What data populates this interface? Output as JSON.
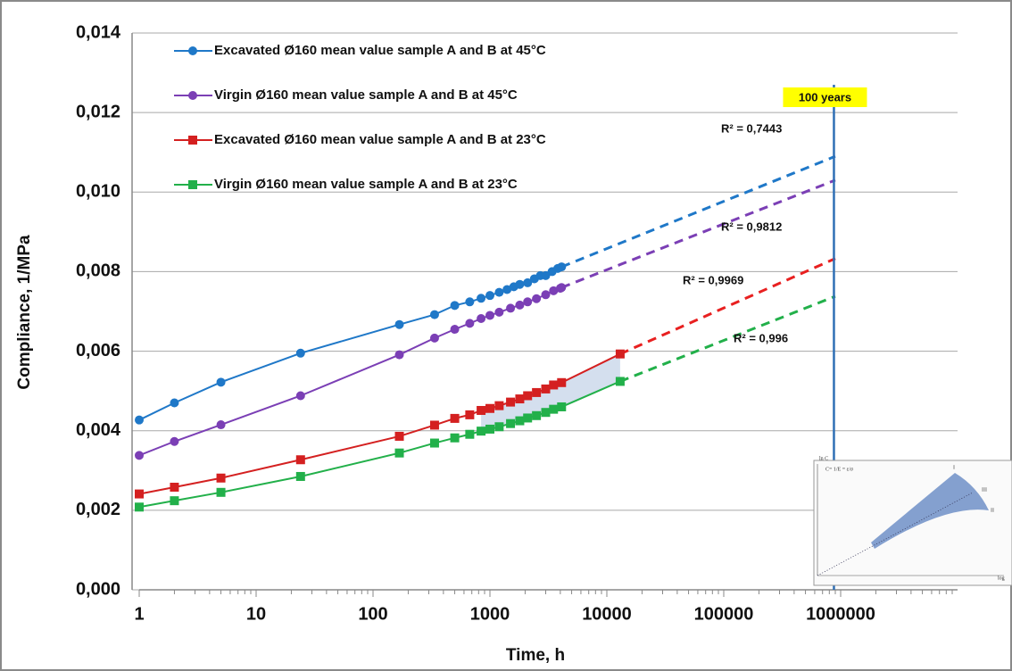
{
  "chart_data": {
    "type": "line",
    "x_label": "Time, h",
    "y_label": "Compliance, 1/MPa",
    "log_x": true,
    "grid": true,
    "xlim": [
      1,
      10000000
    ],
    "xticks": [
      1,
      10,
      100,
      1000,
      10000,
      100000,
      1000000
    ],
    "ylim": [
      0,
      0.014
    ],
    "yticks": [
      {
        "value": 0,
        "label": "0,000"
      },
      {
        "value": 0.002,
        "label": "0,002"
      },
      {
        "value": 0.004,
        "label": "0,004"
      },
      {
        "value": 0.006,
        "label": "0,006"
      },
      {
        "value": 0.008,
        "label": "0,008"
      },
      {
        "value": 0.01,
        "label": "0,010"
      },
      {
        "value": 0.012,
        "label": "0,012"
      },
      {
        "value": 0.014,
        "label": "0,014"
      }
    ],
    "series": [
      {
        "name": "Excavated Ø160 mean value sample A and B at 45°C",
        "color": "#1f78c8",
        "marker": "circle",
        "x": [
          1,
          2,
          5,
          24,
          168,
          336,
          500,
          672,
          840,
          1000,
          1200,
          1400,
          1600,
          1800,
          2100,
          2400,
          2700,
          3000,
          3400,
          3800,
          4100
        ],
        "values": [
          0.00427,
          0.0047,
          0.00522,
          0.00595,
          0.00667,
          0.00692,
          0.00715,
          0.00724,
          0.00733,
          0.0074,
          0.00748,
          0.00755,
          0.00762,
          0.00768,
          0.00772,
          0.00782,
          0.0079,
          0.0079,
          0.008,
          0.00808,
          0.00812
        ]
      },
      {
        "name": "Virgin Ø160 mean value sample A and B at 45°C",
        "color": "#7b3fb5",
        "marker": "circle",
        "x": [
          1,
          2,
          5,
          24,
          168,
          336,
          500,
          672,
          840,
          1000,
          1200,
          1500,
          1800,
          2100,
          2500,
          3000,
          3500,
          4000,
          4100
        ],
        "values": [
          0.00338,
          0.00373,
          0.00415,
          0.00488,
          0.00591,
          0.00633,
          0.00655,
          0.0067,
          0.00682,
          0.0069,
          0.00698,
          0.00708,
          0.00716,
          0.00724,
          0.00732,
          0.00742,
          0.00752,
          0.00758,
          0.0076
        ]
      },
      {
        "name": "Excavated Ø160 mean value sample A and B at 23°C",
        "color": "#d42020",
        "marker": "square",
        "x": [
          1,
          2,
          5,
          24,
          168,
          336,
          500,
          672,
          840,
          1000,
          1200,
          1500,
          1800,
          2100,
          2500,
          3000,
          3500,
          4100,
          13000
        ],
        "values": [
          0.00241,
          0.00258,
          0.00281,
          0.00327,
          0.00386,
          0.00414,
          0.00431,
          0.0044,
          0.00451,
          0.00456,
          0.00463,
          0.00472,
          0.0048,
          0.00488,
          0.00496,
          0.00505,
          0.00515,
          0.00521,
          0.00593
        ]
      },
      {
        "name": "Virgin Ø160 mean value sample A and B at 23°C",
        "color": "#22b04a",
        "marker": "square",
        "x": [
          1,
          2,
          5,
          24,
          168,
          336,
          500,
          672,
          840,
          1000,
          1200,
          1500,
          1800,
          2100,
          2500,
          3000,
          3500,
          4100,
          13000
        ],
        "values": [
          0.00208,
          0.00224,
          0.00245,
          0.00285,
          0.00344,
          0.00369,
          0.00382,
          0.00391,
          0.00399,
          0.00404,
          0.0041,
          0.00418,
          0.00425,
          0.00432,
          0.00438,
          0.00446,
          0.00454,
          0.0046,
          0.00524
        ]
      }
    ],
    "trendlines": [
      {
        "color": "#1f78c8",
        "x": [
          4100,
          900000
        ],
        "values": [
          0.00812,
          0.0109
        ],
        "label": "R² = 0,7443"
      },
      {
        "color": "#7b3fb5",
        "x": [
          4100,
          900000
        ],
        "values": [
          0.0076,
          0.0103
        ],
        "label": "R² = 0,9812"
      },
      {
        "color": "#e82020",
        "x": [
          13000,
          900000
        ],
        "values": [
          0.00593,
          0.00833
        ],
        "label": "R² = 0,9969"
      },
      {
        "color": "#22b04a",
        "x": [
          13000,
          900000
        ],
        "values": [
          0.00524,
          0.00738
        ],
        "label": "R² = 0,996"
      }
    ],
    "reference_line": {
      "x": 876000,
      "label": "100 years",
      "color": "#2f6fb5",
      "label_color": "#ffff00"
    },
    "inset_labels": [
      "ln C",
      "C= 1/E = ε/σ",
      "I",
      "III",
      "II",
      "log"
    ]
  }
}
